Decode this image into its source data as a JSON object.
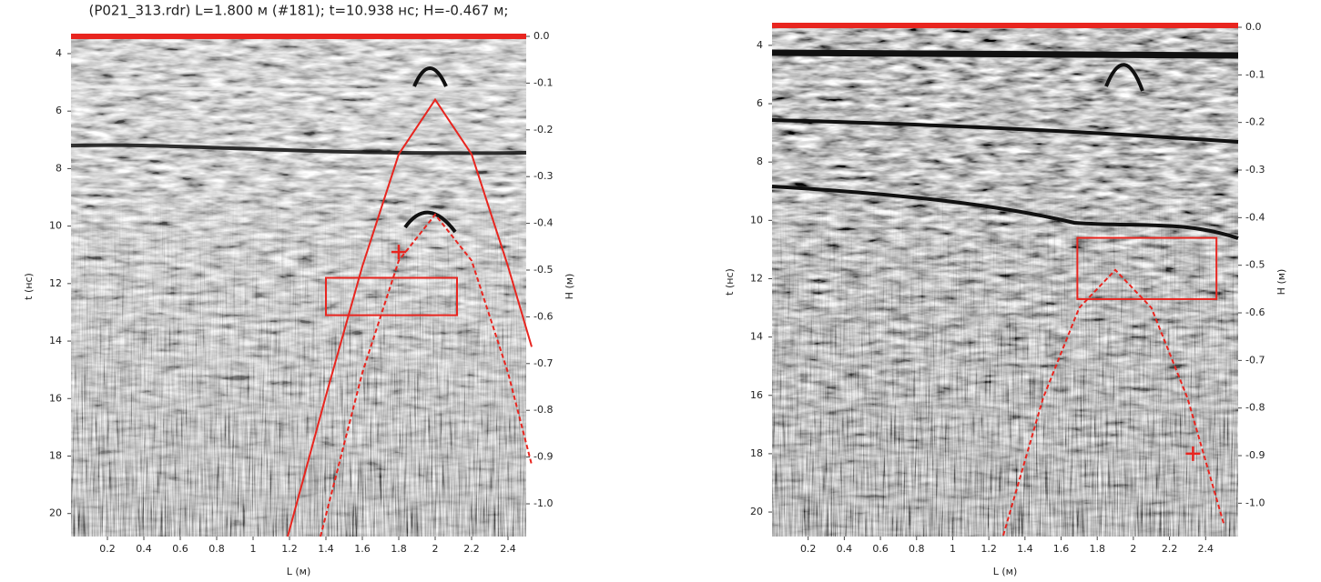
{
  "chart_data": [
    {
      "type": "radargram",
      "title": "(P021_313.rdr) L=1.800 м (#181); t=10.938 нс; H=-0.467 м;",
      "xlabel": "L (м)",
      "ylabel": "t (нс)",
      "y2label": "H (м)",
      "xlim": [
        0,
        2.5
      ],
      "ylim": [
        20.8,
        3.4
      ],
      "y2lim": [
        -1.07,
        0
      ],
      "xticks": [
        0.2,
        0.4,
        0.6,
        0.8,
        1,
        1.2,
        1.4,
        1.6,
        1.8,
        2,
        2.2,
        2.4
      ],
      "yticks": [
        4,
        6,
        8,
        10,
        12,
        14,
        16,
        18,
        20
      ],
      "y2ticks": [
        {
          "value": 0,
          "label": "0.0"
        },
        -0.1,
        -0.2,
        -0.3,
        -0.4,
        -0.5,
        -0.6,
        -0.7,
        -0.8,
        -0.9,
        {
          "value": -1,
          "label": "-1.0"
        }
      ],
      "series": [
        {
          "color": "#e8251f",
          "dashed": false,
          "x": [
            1.19,
            1.4,
            1.6,
            1.8,
            2.0,
            2.2,
            2.4,
            2.53
          ],
          "values": [
            20.8,
            15.9,
            11.4,
            7.5,
            5.6,
            7.5,
            11.4,
            14.2
          ]
        },
        {
          "color": "#e8251f",
          "dashed": true,
          "x": [
            1.37,
            1.6,
            1.8,
            2.0,
            2.2,
            2.4,
            2.53
          ],
          "values": [
            20.8,
            15.1,
            11.2,
            9.6,
            11.2,
            15.1,
            18.3
          ]
        }
      ],
      "markers": [
        {
          "x": 1.8,
          "y": 10.9
        }
      ],
      "regions": [
        {
          "x": [
            1.4,
            2.12
          ],
          "y": [
            11.8,
            13.1
          ]
        }
      ]
    },
    {
      "type": "radargram",
      "xlabel": "L (м)",
      "ylabel": "t (нс)",
      "y2label": "H (м)",
      "xlim": [
        0,
        2.58
      ],
      "ylim": [
        20.84,
        3.38
      ],
      "y2lim": [
        -1.07,
        0
      ],
      "xticks": [
        0.2,
        0.4,
        0.6,
        0.8,
        1,
        1.2,
        1.4,
        1.6,
        1.8,
        2,
        2.2,
        2.4
      ],
      "yticks": [
        4,
        6,
        8,
        10,
        12,
        14,
        16,
        18,
        20
      ],
      "y2ticks": [
        {
          "value": 0,
          "label": "0.0"
        },
        -0.1,
        -0.2,
        -0.3,
        -0.4,
        -0.5,
        -0.6,
        -0.7,
        -0.8,
        -0.9,
        {
          "value": -1,
          "label": "-1.0"
        }
      ],
      "series": [
        {
          "color": "#e8251f",
          "dashed": true,
          "x": [
            1.28,
            1.5,
            1.7,
            1.9,
            2.1,
            2.3,
            2.5
          ],
          "values": [
            20.8,
            16.1,
            13.0,
            11.7,
            13.0,
            16.1,
            20.4
          ]
        }
      ],
      "markers": [
        {
          "x": 2.33,
          "y": 18.0
        }
      ],
      "regions": [
        {
          "x": [
            1.69,
            2.46
          ],
          "y": [
            10.6,
            12.7
          ]
        }
      ]
    }
  ]
}
